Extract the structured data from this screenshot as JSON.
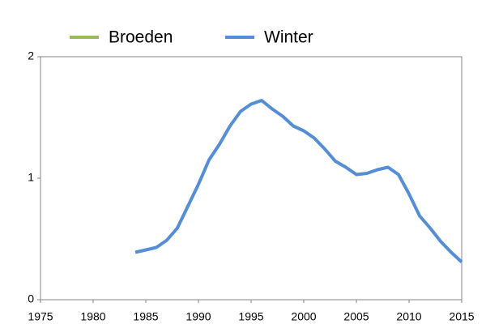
{
  "chart_data": {
    "type": "line",
    "x": [
      1984,
      1985,
      1986,
      1987,
      1988,
      1989,
      1990,
      1991,
      1992,
      1993,
      1994,
      1995,
      1996,
      1997,
      1998,
      1999,
      2000,
      2001,
      2002,
      2003,
      2004,
      2005,
      2006,
      2007,
      2008,
      2009,
      2010,
      2011,
      2012,
      2013,
      2014,
      2015
    ],
    "series": [
      {
        "name": "Broeden",
        "color": "#9bbb59",
        "values": [
          null,
          null,
          null,
          null,
          null,
          null,
          null,
          null,
          null,
          null,
          null,
          null,
          null,
          null,
          null,
          null,
          null,
          null,
          null,
          null,
          null,
          null,
          null,
          null,
          null,
          null,
          null,
          null,
          null,
          null,
          null,
          null
        ]
      },
      {
        "name": "Winter",
        "color": "#558ed5",
        "values": [
          0.39,
          0.41,
          0.43,
          0.49,
          0.59,
          0.77,
          0.95,
          1.15,
          1.28,
          1.43,
          1.55,
          1.61,
          1.64,
          1.57,
          1.51,
          1.43,
          1.39,
          1.33,
          1.24,
          1.14,
          1.09,
          1.03,
          1.04,
          1.07,
          1.09,
          1.03,
          0.87,
          0.69,
          0.59,
          0.48,
          0.39,
          0.31
        ]
      }
    ],
    "xlim": [
      1975,
      2015
    ],
    "xticks": [
      1975,
      1980,
      1985,
      1990,
      1995,
      2000,
      2005,
      2010,
      2015
    ],
    "ylim": [
      0,
      2
    ],
    "yticks": [
      0,
      1,
      2
    ],
    "grid": false,
    "legend": "top"
  }
}
